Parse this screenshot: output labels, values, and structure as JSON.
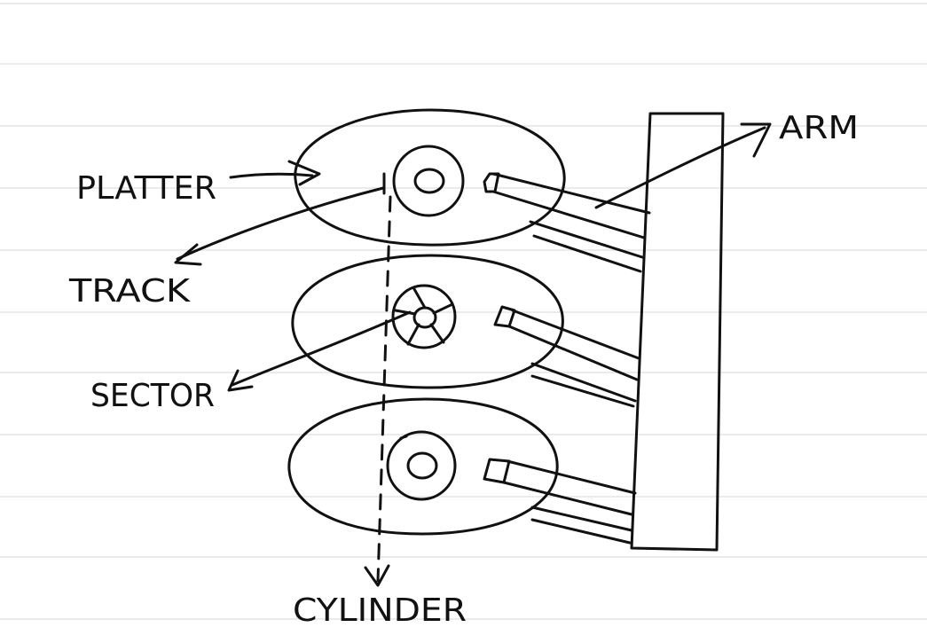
{
  "colors": {
    "ink": "#111111",
    "rule": "#d7d7d7",
    "paper": "#ffffff"
  },
  "labels": {
    "platter": "PLATTER",
    "track": "TRACK",
    "sector": "SECTOR",
    "arm": "ARM",
    "cylinder": "CYLINDER"
  }
}
